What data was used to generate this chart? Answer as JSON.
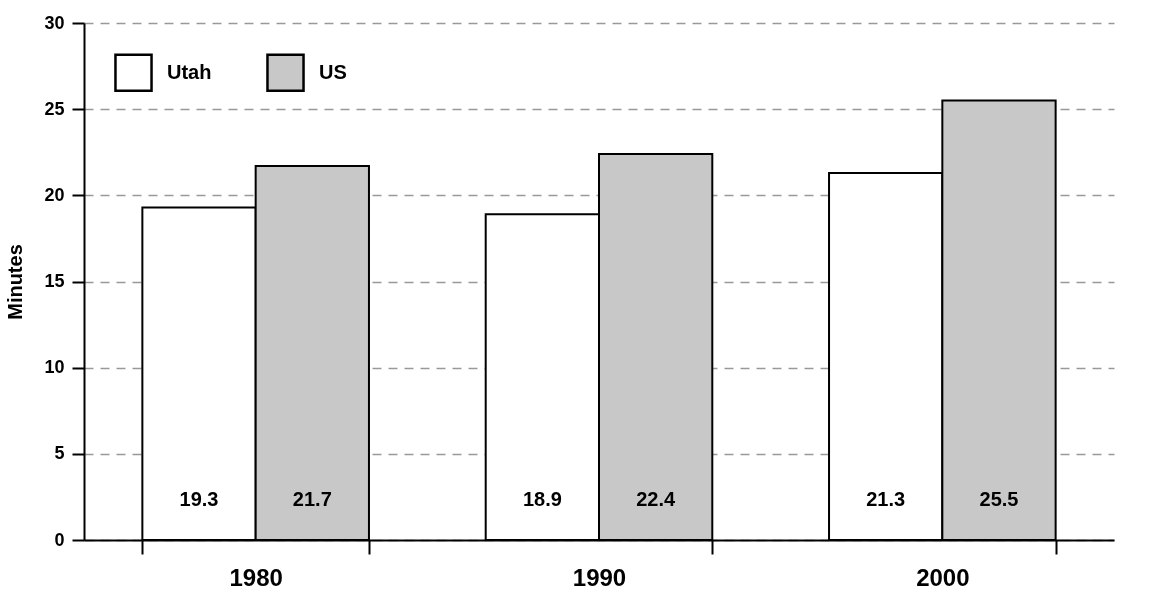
{
  "chart_data": {
    "type": "bar",
    "ylabel": "Minutes",
    "categories": [
      "1980",
      "1990",
      "2000"
    ],
    "series": [
      {
        "name": "Utah",
        "color": "#ffffff",
        "values": [
          19.3,
          18.9,
          21.3
        ]
      },
      {
        "name": "US",
        "color": "#c8c8c8",
        "values": [
          21.7,
          22.4,
          25.5
        ]
      }
    ],
    "ylim": [
      0,
      30
    ],
    "yticks": [
      0,
      5,
      10,
      15,
      20,
      25,
      30
    ],
    "grid": "y",
    "legend": "top left",
    "data_labels": true
  }
}
